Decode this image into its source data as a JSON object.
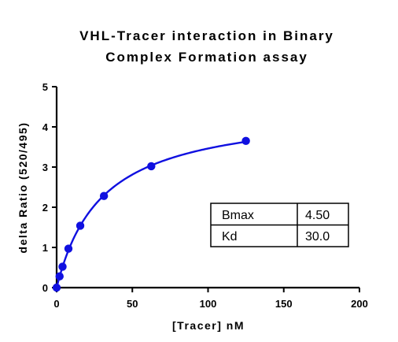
{
  "chart_data": {
    "type": "scatter",
    "title_lines": [
      "VHL-Tracer interaction in Binary",
      "Complex Formation assay"
    ],
    "xlabel": "[Tracer] nM",
    "ylabel": "delta Ratio (520/495)",
    "xlim": [
      0,
      200
    ],
    "ylim": [
      0,
      5
    ],
    "x_ticks": [
      0,
      50,
      100,
      150,
      200
    ],
    "y_ticks": [
      0,
      1,
      2,
      3,
      4,
      5
    ],
    "x_tick_labels": [
      "0",
      "50",
      "100",
      "150",
      "200"
    ],
    "y_tick_labels": [
      "0",
      "1",
      "2",
      "3",
      "4",
      "5"
    ],
    "grid": false,
    "series": [
      {
        "color": "#1010e0",
        "points": [
          {
            "x": 0,
            "y": 0.0
          },
          {
            "x": 1.95,
            "y": 0.28
          },
          {
            "x": 3.9,
            "y": 0.52
          },
          {
            "x": 7.8,
            "y": 0.97
          },
          {
            "x": 15.6,
            "y": 1.54
          },
          {
            "x": 31.25,
            "y": 2.28
          },
          {
            "x": 62.5,
            "y": 3.02
          },
          {
            "x": 125,
            "y": 3.65
          }
        ],
        "fit": {
          "model": "one-site specific binding",
          "Bmax": 4.5,
          "Kd": 30.0,
          "x_range": [
            0,
            125
          ]
        }
      }
    ],
    "parameters_table": [
      {
        "name": "Bmax",
        "value": "4.50"
      },
      {
        "name": "Kd",
        "value": "30.0"
      }
    ]
  }
}
